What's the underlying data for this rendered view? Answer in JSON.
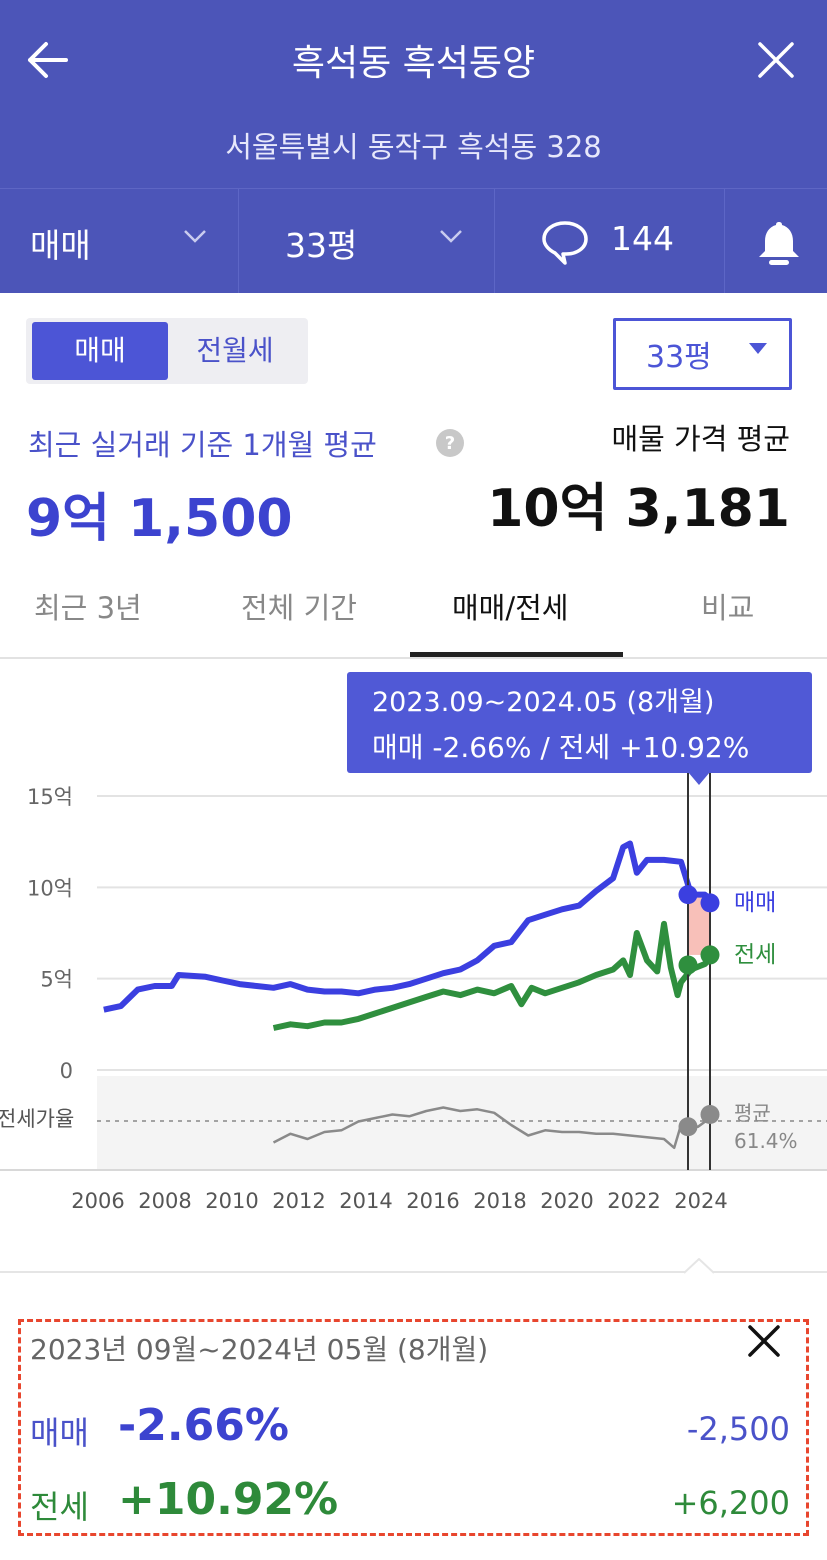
{
  "header": {
    "title": "흑석동 흑석동양",
    "address": "서울특별시 동작구 흑석동 328"
  },
  "toolbar": {
    "trade_type": "매매",
    "size": "33평",
    "comment_count": "144"
  },
  "toggle": {
    "sale": "매매",
    "rent": "전월세"
  },
  "size_dropdown": "33평",
  "summary": {
    "recent_label": "최근 실거래 기준 1개월 평균",
    "recent_price": "9억 1,500",
    "listing_label": "매물 가격 평균",
    "listing_price": "10억 3,181"
  },
  "tabs": [
    "최근 3년",
    "전체 기간",
    "매매/전세",
    "비교"
  ],
  "active_tab": "매매/전세",
  "tooltip": {
    "line1": "2023.09~2024.05 (8개월)",
    "line2": "매매 -2.66%  /  전세 +10.92%"
  },
  "chart_data": {
    "type": "line",
    "y_ticks": [
      "15억",
      "10억",
      "5억",
      "0"
    ],
    "ylim": [
      0,
      15
    ],
    "x_ticks": [
      "2006",
      "2008",
      "2010",
      "2012",
      "2014",
      "2016",
      "2018",
      "2020",
      "2022",
      "2024"
    ],
    "ratio_label": "전세가율",
    "avg_label": "평균",
    "avg_value": "61.4%",
    "series": [
      {
        "name": "매매",
        "color": "#3b3fe0",
        "points": [
          [
            2006.0,
            3.3
          ],
          [
            2006.5,
            3.5
          ],
          [
            2007.0,
            4.4
          ],
          [
            2007.5,
            4.6
          ],
          [
            2008.0,
            4.6
          ],
          [
            2008.2,
            5.2
          ],
          [
            2009.0,
            5.1
          ],
          [
            2009.5,
            4.9
          ],
          [
            2010.0,
            4.7
          ],
          [
            2010.5,
            4.6
          ],
          [
            2011.0,
            4.5
          ],
          [
            2011.5,
            4.7
          ],
          [
            2012.0,
            4.4
          ],
          [
            2012.5,
            4.3
          ],
          [
            2013.0,
            4.3
          ],
          [
            2013.5,
            4.2
          ],
          [
            2014.0,
            4.4
          ],
          [
            2014.5,
            4.5
          ],
          [
            2015.0,
            4.7
          ],
          [
            2015.5,
            5.0
          ],
          [
            2016.0,
            5.3
          ],
          [
            2016.5,
            5.5
          ],
          [
            2017.0,
            6.0
          ],
          [
            2017.5,
            6.8
          ],
          [
            2018.0,
            7.0
          ],
          [
            2018.5,
            8.2
          ],
          [
            2019.0,
            8.5
          ],
          [
            2019.5,
            8.8
          ],
          [
            2020.0,
            9.0
          ],
          [
            2020.5,
            9.8
          ],
          [
            2021.0,
            10.5
          ],
          [
            2021.3,
            12.2
          ],
          [
            2021.5,
            12.4
          ],
          [
            2021.7,
            10.8
          ],
          [
            2022.0,
            11.5
          ],
          [
            2022.5,
            11.5
          ],
          [
            2023.0,
            11.4
          ],
          [
            2023.3,
            9.6
          ],
          [
            2023.7,
            9.6
          ],
          [
            2024.0,
            9.15
          ]
        ]
      },
      {
        "name": "전세",
        "color": "#2f8f3e",
        "points": [
          [
            2011.0,
            2.3
          ],
          [
            2011.5,
            2.5
          ],
          [
            2012.0,
            2.4
          ],
          [
            2012.5,
            2.6
          ],
          [
            2013.0,
            2.6
          ],
          [
            2013.5,
            2.8
          ],
          [
            2014.0,
            3.1
          ],
          [
            2014.5,
            3.4
          ],
          [
            2015.0,
            3.7
          ],
          [
            2015.5,
            4.0
          ],
          [
            2016.0,
            4.3
          ],
          [
            2016.5,
            4.1
          ],
          [
            2017.0,
            4.4
          ],
          [
            2017.5,
            4.2
          ],
          [
            2018.0,
            4.6
          ],
          [
            2018.3,
            3.6
          ],
          [
            2018.6,
            4.5
          ],
          [
            2019.0,
            4.2
          ],
          [
            2019.5,
            4.5
          ],
          [
            2020.0,
            4.8
          ],
          [
            2020.5,
            5.2
          ],
          [
            2021.0,
            5.5
          ],
          [
            2021.3,
            6.0
          ],
          [
            2021.5,
            5.2
          ],
          [
            2021.7,
            7.5
          ],
          [
            2022.0,
            6.0
          ],
          [
            2022.3,
            5.4
          ],
          [
            2022.5,
            8.0
          ],
          [
            2022.7,
            5.6
          ],
          [
            2022.9,
            4.1
          ],
          [
            2023.0,
            4.8
          ],
          [
            2023.3,
            5.5
          ],
          [
            2023.7,
            5.8
          ],
          [
            2024.0,
            6.3
          ]
        ]
      },
      {
        "name": "전세가율",
        "color": "#8a8a8a",
        "points": [
          [
            2011.0,
            50
          ],
          [
            2011.5,
            55
          ],
          [
            2012.0,
            52
          ],
          [
            2012.5,
            56
          ],
          [
            2013.0,
            57
          ],
          [
            2013.5,
            62
          ],
          [
            2014.0,
            64
          ],
          [
            2014.5,
            66
          ],
          [
            2015.0,
            65
          ],
          [
            2015.5,
            68
          ],
          [
            2016.0,
            70
          ],
          [
            2016.5,
            68
          ],
          [
            2017.0,
            69
          ],
          [
            2017.5,
            67
          ],
          [
            2018.0,
            60
          ],
          [
            2018.5,
            54
          ],
          [
            2019.0,
            57
          ],
          [
            2019.5,
            56
          ],
          [
            2020.0,
            56
          ],
          [
            2020.5,
            55
          ],
          [
            2021.0,
            55
          ],
          [
            2021.5,
            54
          ],
          [
            2022.0,
            53
          ],
          [
            2022.5,
            52
          ],
          [
            2022.8,
            47
          ],
          [
            2023.0,
            60
          ],
          [
            2023.5,
            59
          ],
          [
            2024.0,
            66
          ]
        ]
      }
    ],
    "highlight_range": [
      "2023.09",
      "2024.05"
    ]
  },
  "panel": {
    "period": "2023년 09월~2024년 05월 (8개월)",
    "sale_label": "매매",
    "sale_pct": "-2.66%",
    "sale_amount": "-2,500",
    "rent_label": "전세",
    "rent_pct": "+10.92%",
    "rent_amount": "+6,200"
  },
  "colors": {
    "header_bg": "#4c55b8",
    "accent": "#4c55d6",
    "sale": "#3b3fe0",
    "rent": "#2f8f3e"
  }
}
